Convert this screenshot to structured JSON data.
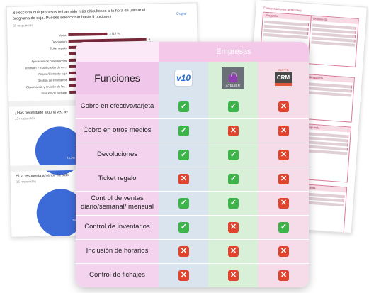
{
  "survey": {
    "question": "Selecciona qué procesos te han sido más dificultosos a la hora de utilizar el programa de caja. Puedes seleccionar hasta 5 opciones",
    "copy_label": "Copiar",
    "responses": "20 respuestas",
    "bars": [
      {
        "label": "Venta",
        "value": "2 (10 %)",
        "fraction": 0.1
      },
      {
        "label": "Devolución",
        "value": "4 (20 %)",
        "fraction": 0.2
      },
      {
        "label": "Ticket regalo",
        "value": "",
        "fraction": 0.15
      },
      {
        "label": "...",
        "value": "",
        "fraction": 0.12
      },
      {
        "label": "Aplicación de promociones",
        "value": "",
        "fraction": 0.1
      },
      {
        "label": "Revisión y modificación de un...",
        "value": "",
        "fraction": 0.08
      },
      {
        "label": "Arqueo/Cierre de caja",
        "value": "",
        "fraction": 0.18
      },
      {
        "label": "Gestión de inventarios",
        "value": "",
        "fraction": 0.07
      },
      {
        "label": "Observación y revisión de las...",
        "value": "",
        "fraction": 0.09
      },
      {
        "label": "Emisión de facturas",
        "value": "",
        "fraction": 0.06
      }
    ],
    "question2": "¿Has necesitado alguna vez ay",
    "responses2": "15 respuestas",
    "pie1_label": "73,3%",
    "question3": "Si la respuesta anterior ha sido",
    "responses3": "15 respuestas",
    "pie2_label": "75%"
  },
  "doc": {
    "title": "Conversaciones generales",
    "col1": "Pregunta",
    "col2": "Respuesta",
    "section2": "Preguntas"
  },
  "table": {
    "companies_header": "Empresas",
    "functions_header": "Funciones",
    "logos": [
      {
        "name": "v10-logo",
        "text": "v10"
      },
      {
        "name": "atelier-logo",
        "text": "ATELIER"
      },
      {
        "name": "suite-crm-logo",
        "suite": "SUITE",
        "text": "CRM"
      }
    ],
    "rows": [
      {
        "label": "Cobro en efectivo/tarjeta",
        "a": true,
        "b": true,
        "c": false
      },
      {
        "label": "Cobro en otros medios",
        "a": true,
        "b": false,
        "c": false
      },
      {
        "label": "Devoluciones",
        "a": true,
        "b": true,
        "c": false
      },
      {
        "label": "Ticket regalo",
        "a": false,
        "b": true,
        "c": false
      },
      {
        "label": "Control de ventas diario/semanal/ mensual",
        "a": true,
        "b": true,
        "c": false
      },
      {
        "label": "Control de inventarios",
        "a": true,
        "b": false,
        "c": true
      },
      {
        "label": "Inclusión de horarios",
        "a": false,
        "b": false,
        "c": false
      },
      {
        "label": "Control de fichajes",
        "a": false,
        "b": false,
        "c": false
      }
    ],
    "colors": {
      "ok": "#3cb44a",
      "no": "#e0442e"
    }
  }
}
